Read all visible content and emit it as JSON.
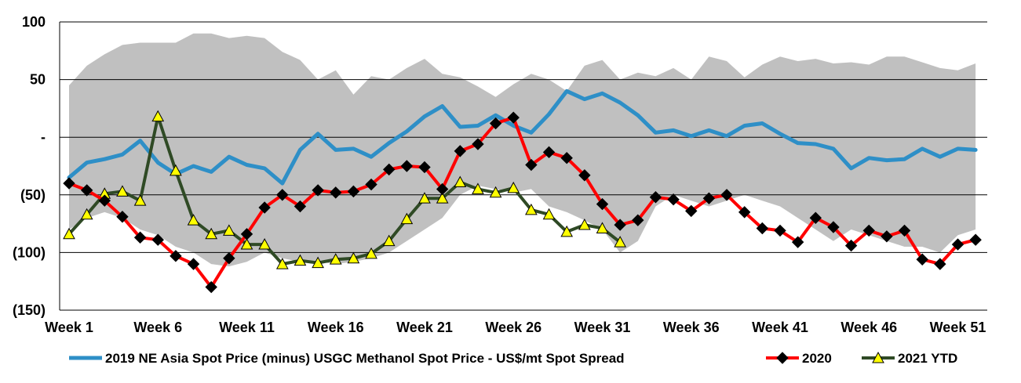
{
  "chart_data": {
    "type": "line",
    "title": "",
    "xlabel": "",
    "ylabel": "",
    "ylim": [
      -150,
      100
    ],
    "yticks": [
      100,
      50,
      0,
      -50,
      -100,
      -150
    ],
    "ytick_labels": [
      "100",
      "50",
      "-",
      "(50)",
      "(100)",
      "(150)"
    ],
    "xtick_weeks": [
      1,
      6,
      11,
      16,
      21,
      26,
      31,
      36,
      41,
      46,
      51
    ],
    "xtick_labels": [
      "Week 1",
      "Week 6",
      "Week 11",
      "Week 16",
      "Week 21",
      "Week 26",
      "Week 31",
      "Week 36",
      "Week 41",
      "Week 46",
      "Week 51"
    ],
    "grid": "horizontal",
    "legend_position": "bottom",
    "band": {
      "color": "#c0c0c0",
      "upper": [
        45,
        62,
        72,
        80,
        82,
        82,
        82,
        90,
        90,
        86,
        88,
        86,
        74,
        67,
        50,
        58,
        37,
        53,
        50,
        60,
        68,
        55,
        52,
        44,
        35,
        46,
        55,
        50,
        40,
        62,
        67,
        50,
        56,
        53,
        60,
        50,
        70,
        66,
        52,
        63,
        70,
        66,
        68,
        64,
        65,
        63,
        70,
        70,
        65,
        60,
        58,
        64
      ],
      "lower": [
        -80,
        -70,
        -65,
        -70,
        -80,
        -85,
        -95,
        -100,
        -110,
        -112,
        -108,
        -100,
        -105,
        -108,
        -108,
        -110,
        -108,
        -105,
        -100,
        -90,
        -80,
        -70,
        -50,
        -42,
        -45,
        -48,
        -45,
        -60,
        -65,
        -72,
        -80,
        -100,
        -90,
        -60,
        -50,
        -55,
        -60,
        -55,
        -50,
        -55,
        -60,
        -70,
        -80,
        -90,
        -80,
        -85,
        -90,
        -95,
        -95,
        -100,
        -85,
        -80
      ]
    },
    "series": [
      {
        "name": "2019 NE Asia Spot Price (minus) USGC Methanol Spot Price - US$/mt Spot Spread",
        "color": "#2e8fc7",
        "marker": "none",
        "values": [
          -35,
          -22,
          -19,
          -15,
          -3,
          -22,
          -32,
          -25,
          -30,
          -17,
          -24,
          -27,
          -40,
          -11,
          3,
          -11,
          -10,
          -17,
          -5,
          5,
          18,
          27,
          9,
          10,
          19,
          10,
          4,
          20,
          40,
          33,
          38,
          30,
          19,
          4,
          6,
          1,
          6,
          1,
          10,
          12,
          3,
          -5,
          -6,
          -10,
          -27,
          -18,
          -20,
          -19,
          -10,
          -17,
          -10,
          -11
        ]
      },
      {
        "name": "2020",
        "color": "#ff0000",
        "marker": "diamond",
        "values": [
          -40,
          -46,
          -55,
          -69,
          -87,
          -89,
          -103,
          -110,
          -130,
          -105,
          -84,
          -61,
          -50,
          -60,
          -46,
          -48,
          -47,
          -41,
          -28,
          -25,
          -26,
          -45,
          -12,
          -6,
          12,
          17,
          -24,
          -13,
          -18,
          -33,
          -58,
          -76,
          -72,
          -52,
          -54,
          -64,
          -53,
          -50,
          -65,
          -79,
          -81,
          -91,
          -70,
          -78,
          -94,
          -81,
          -86,
          -81,
          -106,
          -110,
          -93,
          -89
        ]
      },
      {
        "name": "2021 YTD",
        "color": "#2f4a25",
        "marker": "triangle",
        "markerFill": "#ffff00",
        "values": [
          -84,
          -67,
          -49,
          -47,
          -55,
          18,
          -29,
          -72,
          -84,
          -81,
          -93,
          -93,
          -110,
          -107,
          -109,
          -106,
          -105,
          -101,
          -90,
          -71,
          -53,
          -53,
          -39,
          -45,
          -48,
          -44,
          -63,
          -67,
          -82,
          -76,
          -79,
          -91
        ]
      }
    ]
  }
}
